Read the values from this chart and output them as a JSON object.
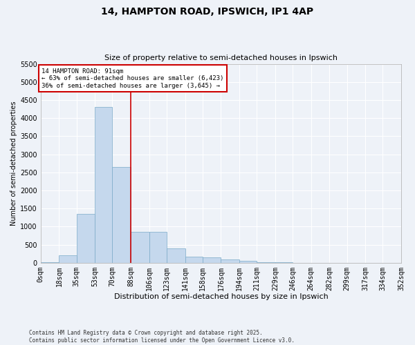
{
  "title": "14, HAMPTON ROAD, IPSWICH, IP1 4AP",
  "subtitle": "Size of property relative to semi-detached houses in Ipswich",
  "xlabel": "Distribution of semi-detached houses by size in Ipswich",
  "ylabel": "Number of semi-detached properties",
  "property_line_x": 88,
  "annotation_title": "14 HAMPTON ROAD: 91sqm",
  "annotation_line1": "← 63% of semi-detached houses are smaller (6,423)",
  "annotation_line2": "36% of semi-detached houses are larger (3,645) →",
  "footnote1": "Contains HM Land Registry data © Crown copyright and database right 2025.",
  "footnote2": "Contains public sector information licensed under the Open Government Licence v3.0.",
  "bar_color": "#c5d8ed",
  "bar_edge_color": "#7aaac8",
  "line_color": "#cc0000",
  "annotation_box_color": "#cc0000",
  "background_color": "#eef2f8",
  "grid_color": "#ffffff",
  "ylim": [
    0,
    5500
  ],
  "yticks": [
    0,
    500,
    1000,
    1500,
    2000,
    2500,
    3000,
    3500,
    4000,
    4500,
    5000,
    5500
  ],
  "bin_labels": [
    "0sqm",
    "18sqm",
    "35sqm",
    "53sqm",
    "70sqm",
    "88sqm",
    "106sqm",
    "123sqm",
    "141sqm",
    "158sqm",
    "176sqm",
    "194sqm",
    "211sqm",
    "229sqm",
    "246sqm",
    "264sqm",
    "282sqm",
    "299sqm",
    "317sqm",
    "334sqm",
    "352sqm"
  ],
  "bin_edges": [
    0,
    18,
    35,
    53,
    70,
    88,
    106,
    123,
    141,
    158,
    176,
    194,
    211,
    229,
    246,
    264,
    282,
    299,
    317,
    334,
    352
  ],
  "bar_heights": [
    15,
    200,
    1350,
    4300,
    2650,
    850,
    850,
    400,
    170,
    150,
    90,
    50,
    20,
    8,
    4,
    2,
    1,
    1,
    0,
    0
  ]
}
